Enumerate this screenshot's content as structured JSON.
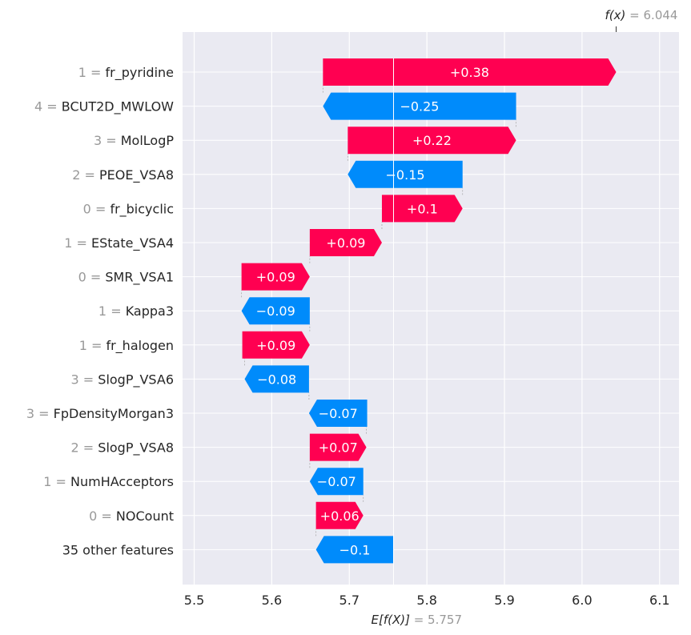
{
  "chart_data": {
    "type": "waterfall",
    "fx_label": "f(x)",
    "fx_value_label": "= 6.044",
    "fx_value": 6.044,
    "efx_label": "E[f(X)]",
    "efx_value_label": "= 5.757",
    "efx_value": 5.757,
    "xlim": [
      5.485,
      6.125
    ],
    "xticks": [
      5.5,
      5.6,
      5.7,
      5.8,
      5.9,
      6.0,
      6.1
    ],
    "xtick_labels": [
      "5.5",
      "5.6",
      "5.7",
      "5.8",
      "5.9",
      "6.0",
      "6.1"
    ],
    "grid": true,
    "colors": {
      "positive": "#ff0051",
      "negative": "#008bfb",
      "background": "#eaeaf2",
      "grid": "#ffffff",
      "value_label": "#999999"
    },
    "features": [
      {
        "value": "1",
        "name": "fr_pyridine",
        "shap": 0.378,
        "label": "+0.38",
        "start": 5.666,
        "end": 6.044
      },
      {
        "value": "4",
        "name": "BCUT2D_MWLOW",
        "shap": -0.249,
        "label": "−0.25",
        "start": 5.915,
        "end": 5.666
      },
      {
        "value": "3",
        "name": "MolLogP",
        "shap": 0.217,
        "label": "+0.22",
        "start": 5.698,
        "end": 5.915
      },
      {
        "value": "2",
        "name": "PEOE_VSA8",
        "shap": -0.148,
        "label": "−0.15",
        "start": 5.846,
        "end": 5.698
      },
      {
        "value": "0",
        "name": "fr_bicyclic",
        "shap": 0.104,
        "label": "+0.1",
        "start": 5.742,
        "end": 5.846
      },
      {
        "value": "1",
        "name": "EState_VSA4",
        "shap": 0.093,
        "label": "+0.09",
        "start": 5.649,
        "end": 5.742
      },
      {
        "value": "0",
        "name": "SMR_VSA1",
        "shap": 0.088,
        "label": "+0.09",
        "start": 5.561,
        "end": 5.649
      },
      {
        "value": "1",
        "name": "Kappa3",
        "shap": -0.088,
        "label": "−0.09",
        "start": 5.649,
        "end": 5.561
      },
      {
        "value": "1",
        "name": "fr_halogen",
        "shap": 0.087,
        "label": "+0.09",
        "start": 5.562,
        "end": 5.649
      },
      {
        "value": "3",
        "name": "SlogP_VSA6",
        "shap": -0.083,
        "label": "−0.08",
        "start": 5.648,
        "end": 5.565
      },
      {
        "value": "3",
        "name": "FpDensityMorgan3",
        "shap": -0.075,
        "label": "−0.07",
        "start": 5.723,
        "end": 5.648
      },
      {
        "value": "2",
        "name": "SlogP_VSA8",
        "shap": 0.073,
        "label": "+0.07",
        "start": 5.649,
        "end": 5.722
      },
      {
        "value": "1",
        "name": "NumHAcceptors",
        "shap": -0.069,
        "label": "−0.07",
        "start": 5.718,
        "end": 5.649
      },
      {
        "value": "0",
        "name": "NOCount",
        "shap": 0.061,
        "label": "+0.06",
        "start": 5.657,
        "end": 5.718
      },
      {
        "value": "",
        "name": "35 other features",
        "shap": -0.1,
        "label": "−0.1",
        "start": 5.757,
        "end": 5.657
      }
    ]
  }
}
